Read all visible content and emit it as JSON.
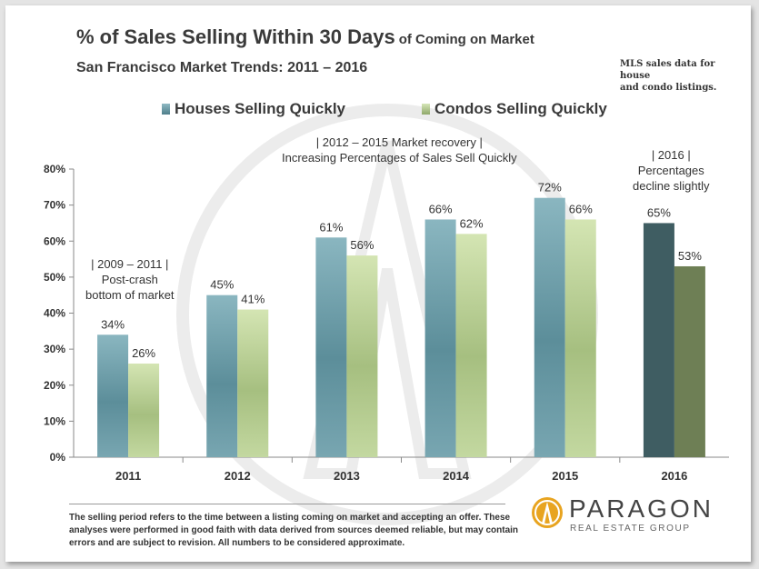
{
  "title": {
    "main": "% of Sales Selling Within 30 Days",
    "tail": "of Coming on Market",
    "subtitle": "San Francisco Market Trends: 2011 – 2016"
  },
  "note": {
    "line1": "MLS sales data for house",
    "line2": "and condo listings."
  },
  "legend": {
    "houses": "Houses Selling Quickly",
    "condos": "Condos Selling Quickly"
  },
  "annotations": {
    "crash": [
      "| 2009 – 2011 |",
      "Post-crash",
      "bottom  of market"
    ],
    "recovery": [
      "|      2012  – 2015 Market recovery     |",
      "Increasing Percentages  of Sales Sell Quickly"
    ],
    "decline": [
      "|   2016   |",
      "Percentages",
      "decline slightly"
    ]
  },
  "disclaimer": "The selling period refers to the time between a listing coming on market and accepting an offer. These analyses were performed in good faith with data derived from sources deemed reliable, but may contain errors and are subject to revision.  All numbers to be considered  approximate.",
  "logo": {
    "name": "PARAGON",
    "sub": "REAL ESTATE GROUP",
    "icon": "paragon-logo-icon"
  },
  "colors": {
    "houses": "#6e9fac",
    "condos": "#c1d69c",
    "houses_2016": "#3f5d62",
    "condos_2016": "#6e7f55"
  },
  "chart_data": {
    "type": "bar",
    "categories": [
      "2011",
      "2012",
      "2013",
      "2014",
      "2015",
      "2016"
    ],
    "series": [
      {
        "name": "Houses Selling Quickly",
        "values": [
          34,
          45,
          61,
          66,
          72,
          65
        ]
      },
      {
        "name": "Condos Selling Quickly",
        "values": [
          26,
          41,
          56,
          62,
          66,
          53
        ]
      }
    ],
    "value_suffix": "%",
    "ylim": [
      0,
      80
    ],
    "yticks": [
      0,
      10,
      20,
      30,
      40,
      50,
      60,
      70,
      80
    ],
    "ytick_labels": [
      "0%",
      "10%",
      "20%",
      "30%",
      "40%",
      "50%",
      "60%",
      "70%",
      "80%"
    ],
    "grid": false,
    "legend_position": "top"
  }
}
